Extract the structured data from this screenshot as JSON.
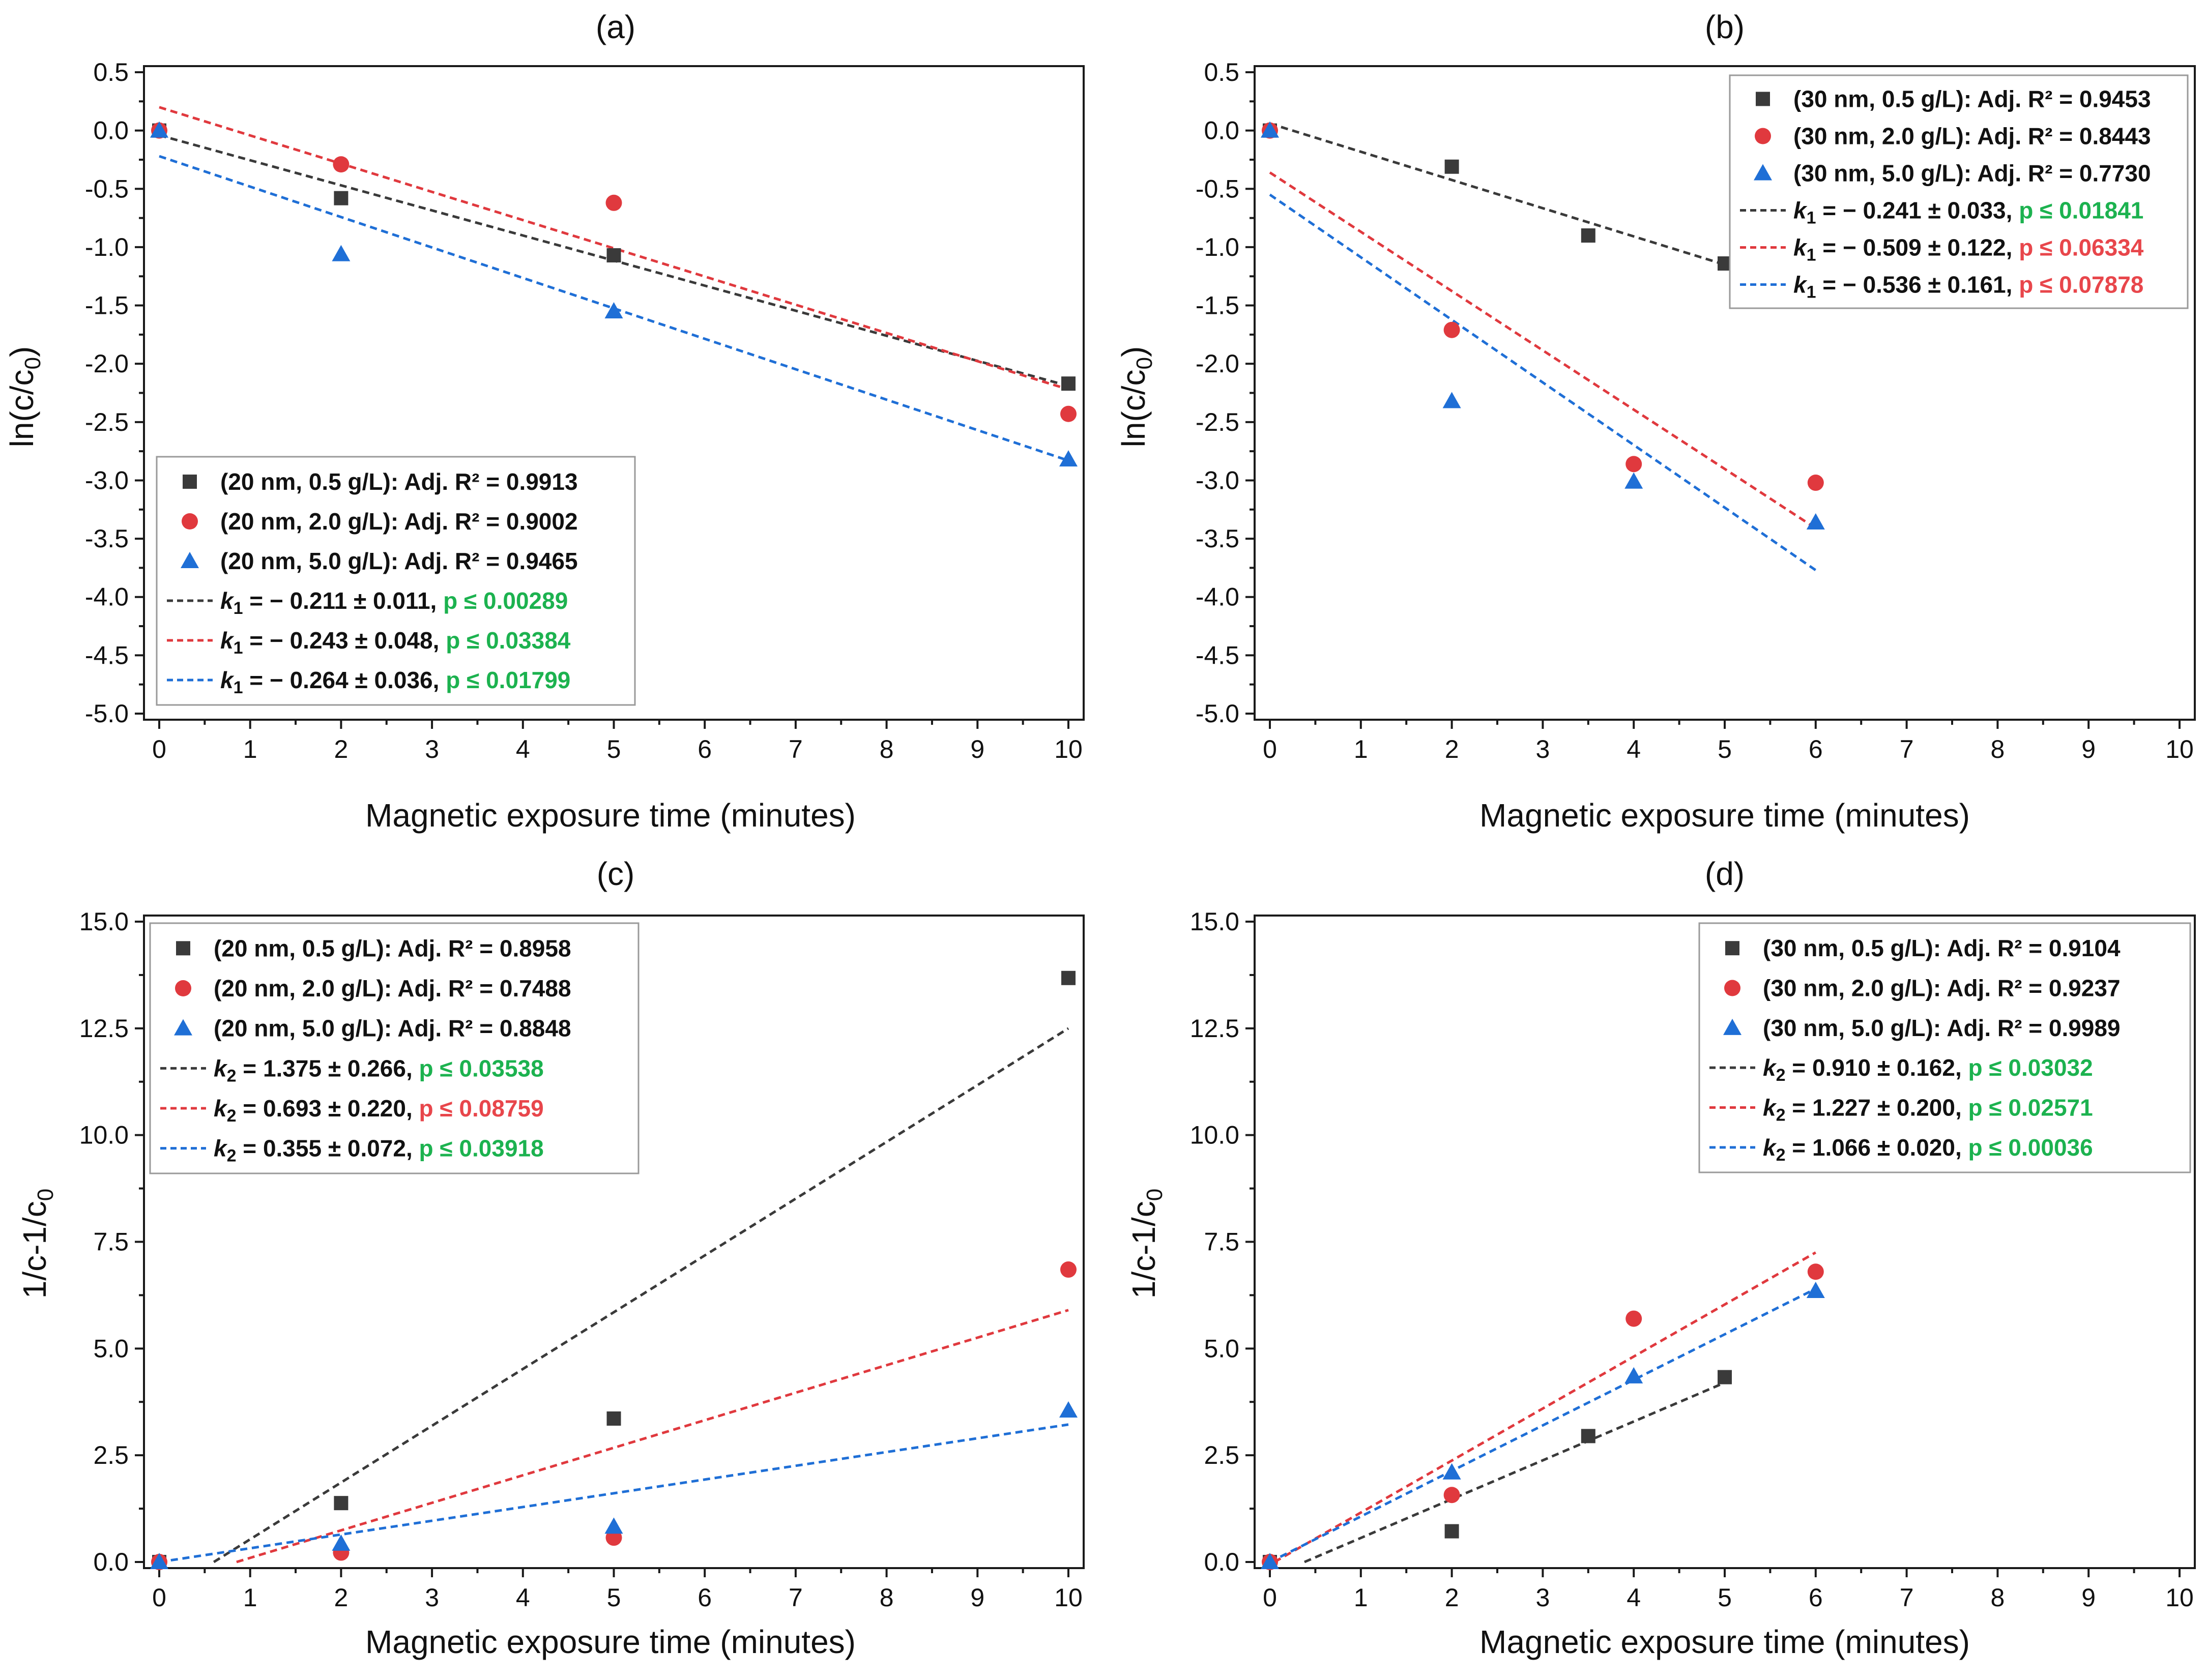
{
  "colors": {
    "black": "#3a3a3a",
    "red": "#e0393e",
    "blue": "#1f6fd6",
    "green": "#1cb24f",
    "pred": "#e8464b"
  },
  "chart_data": [
    {
      "id": "a",
      "title": "(a)",
      "type": "scatter",
      "xlabel": "Magnetic exposure time (minutes)",
      "ylabel": "ln(c/c0)",
      "ylabel_main": "ln(c/c",
      "ylabel_sub": "0",
      "ylabel_end": ")",
      "xlim": [
        0,
        10
      ],
      "ylim": [
        -5.0,
        0.5
      ],
      "xticks": [
        0,
        1,
        2,
        3,
        4,
        5,
        6,
        7,
        8,
        9,
        10
      ],
      "xtick_labels": [
        "0",
        "1",
        "2",
        "3",
        "4",
        "5",
        "6",
        "7",
        "8",
        "9",
        "10"
      ],
      "yticks": [
        0.5,
        0.0,
        -0.5,
        -1.0,
        -1.5,
        -2.0,
        -2.5,
        -3.0,
        -3.5,
        -4.0,
        -4.5,
        -5.0
      ],
      "ytick_labels": [
        "0.5",
        "0.0",
        "-0.5",
        "-1.0",
        "-1.5",
        "-2.0",
        "-2.5",
        "-3.0",
        "-3.5",
        "-4.0",
        "-4.5",
        "-5.0"
      ],
      "legend_position": "bottom-left",
      "series": [
        {
          "name": "(20 nm, 0.5 g/L): Adj. R² = 0.9913",
          "marker": "square",
          "color": "black",
          "x": [
            0,
            2,
            5,
            10
          ],
          "y": [
            0.0,
            -0.58,
            -1.07,
            -2.17
          ]
        },
        {
          "name": "(20 nm, 2.0 g/L): Adj. R² = 0.9002",
          "marker": "circle",
          "color": "red",
          "x": [
            0,
            2,
            5,
            10
          ],
          "y": [
            0.0,
            -0.29,
            -0.62,
            -2.43
          ]
        },
        {
          "name": "(20 nm, 5.0 g/L): Adj. R² = 0.9465",
          "marker": "triangle",
          "color": "blue",
          "x": [
            0,
            2,
            5,
            10
          ],
          "y": [
            0.0,
            -1.06,
            -1.55,
            -2.82
          ]
        }
      ],
      "fits": [
        {
          "color": "black",
          "x": [
            0,
            10
          ],
          "y": [
            -0.04,
            -2.19
          ],
          "k_symbol": "k",
          "k_sub": "1",
          "k_text": " = − 0.211 ± 0.011, ",
          "p_text": "p ≤ 0.00289",
          "p_color": "green"
        },
        {
          "color": "red",
          "x": [
            0,
            10
          ],
          "y": [
            0.2,
            -2.22
          ],
          "k_symbol": "k",
          "k_sub": "1",
          "k_text": " = − 0.243 ± 0.048, ",
          "p_text": "p ≤ 0.03384",
          "p_color": "green"
        },
        {
          "color": "blue",
          "x": [
            0,
            10
          ],
          "y": [
            -0.22,
            -2.83
          ],
          "k_symbol": "k",
          "k_sub": "1",
          "k_text": " = − 0.264 ± 0.036, ",
          "p_text": "p ≤ 0.01799",
          "p_color": "green"
        }
      ]
    },
    {
      "id": "b",
      "title": "(b)",
      "type": "scatter",
      "xlabel": "Magnetic exposure time (minutes)",
      "ylabel": "ln(c/c0)",
      "ylabel_main": "ln(c/c",
      "ylabel_sub": "0",
      "ylabel_end": ")",
      "xlim": [
        0,
        10
      ],
      "ylim": [
        -5.0,
        0.5
      ],
      "xticks": [
        0,
        1,
        2,
        3,
        4,
        5,
        6,
        7,
        8,
        9,
        10
      ],
      "xtick_labels": [
        "0",
        "1",
        "2",
        "3",
        "4",
        "5",
        "6",
        "7",
        "8",
        "9",
        "10"
      ],
      "yticks": [
        0.5,
        0.0,
        -0.5,
        -1.0,
        -1.5,
        -2.0,
        -2.5,
        -3.0,
        -3.5,
        -4.0,
        -4.5,
        -5.0
      ],
      "ytick_labels": [
        "0.5",
        "0.0",
        "-0.5",
        "-1.0",
        "-1.5",
        "-2.0",
        "-2.5",
        "-3.0",
        "-3.5",
        "-4.0",
        "-4.5",
        "-5.0"
      ],
      "legend_position": "top-right",
      "series": [
        {
          "name": "(30 nm, 0.5 g/L): Adj. R² = 0.9453",
          "marker": "square",
          "color": "black",
          "x": [
            0,
            2,
            3.5,
            5
          ],
          "y": [
            0.0,
            -0.31,
            -0.9,
            -1.14
          ]
        },
        {
          "name": "(30 nm, 2.0 g/L): Adj. R² = 0.8443",
          "marker": "circle",
          "color": "red",
          "x": [
            0,
            2,
            4,
            6
          ],
          "y": [
            0.0,
            -1.71,
            -2.86,
            -3.02
          ]
        },
        {
          "name": "(30 nm, 5.0 g/L): Adj. R² = 0.7730",
          "marker": "triangle",
          "color": "blue",
          "x": [
            0,
            2,
            4,
            6
          ],
          "y": [
            0.0,
            -2.32,
            -3.01,
            -3.36
          ]
        }
      ],
      "fits": [
        {
          "color": "black",
          "x": [
            0,
            5
          ],
          "y": [
            0.06,
            -1.15
          ],
          "k_symbol": "k",
          "k_sub": "1",
          "k_text": " = − 0.241 ± 0.033, ",
          "p_text": "p ≤ 0.01841",
          "p_color": "green"
        },
        {
          "color": "red",
          "x": [
            0,
            6
          ],
          "y": [
            -0.36,
            -3.41
          ],
          "k_symbol": "k",
          "k_sub": "1",
          "k_text": " = − 0.509 ± 0.122, ",
          "p_text": "p ≤ 0.06334",
          "p_color": "pred"
        },
        {
          "color": "blue",
          "x": [
            0,
            6
          ],
          "y": [
            -0.55,
            -3.77
          ],
          "k_symbol": "k",
          "k_sub": "1",
          "k_text": " = − 0.536 ± 0.161, ",
          "p_text": "p ≤ 0.07878",
          "p_color": "pred"
        }
      ]
    },
    {
      "id": "c",
      "title": "(c)",
      "type": "scatter",
      "xlabel": "Magnetic exposure time (minutes)",
      "ylabel": "1/c-1/c0",
      "ylabel_main": "1/c-1/c",
      "ylabel_sub": "0",
      "ylabel_end": "",
      "xlim": [
        0,
        10
      ],
      "ylim": [
        0,
        15
      ],
      "xticks": [
        0,
        1,
        2,
        3,
        4,
        5,
        6,
        7,
        8,
        9,
        10
      ],
      "xtick_labels": [
        "0",
        "1",
        "2",
        "3",
        "4",
        "5",
        "6",
        "7",
        "8",
        "9",
        "10"
      ],
      "yticks": [
        0,
        2.5,
        5,
        7.5,
        10,
        12.5,
        15
      ],
      "ytick_labels": [
        "0.0",
        "2.5",
        "5.0",
        "7.5",
        "10.0",
        "12.5",
        "15.0"
      ],
      "legend_position": "top-left",
      "series": [
        {
          "name": "(20 nm, 0.5 g/L): Adj. R² = 0.8958",
          "marker": "square",
          "color": "black",
          "x": [
            0,
            2,
            5,
            10
          ],
          "y": [
            0.0,
            1.38,
            3.36,
            13.68
          ]
        },
        {
          "name": "(20 nm, 2.0 g/L): Adj. R² = 0.7488",
          "marker": "circle",
          "color": "red",
          "x": [
            0,
            2,
            5,
            10
          ],
          "y": [
            0.0,
            0.22,
            0.57,
            6.85
          ]
        },
        {
          "name": "(20 nm, 5.0 g/L): Adj. R² = 0.8848",
          "marker": "triangle",
          "color": "blue",
          "x": [
            0,
            2,
            5,
            10
          ],
          "y": [
            0.0,
            0.43,
            0.83,
            3.55
          ]
        }
      ],
      "fits": [
        {
          "color": "black",
          "x": [
            0.6,
            10
          ],
          "y": [
            0.0,
            12.5
          ],
          "k_symbol": "k",
          "k_sub": "2",
          "k_text": " = 1.375 ± 0.266, ",
          "p_text": "p ≤ 0.03538",
          "p_color": "green"
        },
        {
          "color": "red",
          "x": [
            0.85,
            10
          ],
          "y": [
            0.0,
            5.9
          ],
          "k_symbol": "k",
          "k_sub": "2",
          "k_text": " = 0.693 ± 0.220, ",
          "p_text": "p ≤ 0.08759",
          "p_color": "pred"
        },
        {
          "color": "blue",
          "x": [
            0,
            10
          ],
          "y": [
            0.0,
            3.22
          ],
          "k_symbol": "k",
          "k_sub": "2",
          "k_text": " = 0.355 ± 0.072, ",
          "p_text": "p ≤ 0.03918",
          "p_color": "green"
        }
      ]
    },
    {
      "id": "d",
      "title": "(d)",
      "type": "scatter",
      "xlabel": "Magnetic exposure time (minutes)",
      "ylabel": "1/c-1/c0",
      "ylabel_main": "1/c-1/c",
      "ylabel_sub": "0",
      "ylabel_end": "",
      "xlim": [
        0,
        10
      ],
      "ylim": [
        0,
        15
      ],
      "xticks": [
        0,
        1,
        2,
        3,
        4,
        5,
        6,
        7,
        8,
        9,
        10
      ],
      "xtick_labels": [
        "0",
        "1",
        "2",
        "3",
        "4",
        "5",
        "6",
        "7",
        "8",
        "9",
        "10"
      ],
      "yticks": [
        0,
        2.5,
        5,
        7.5,
        10,
        12.5,
        15
      ],
      "ytick_labels": [
        "0.0",
        "2.5",
        "5.0",
        "7.5",
        "10.0",
        "12.5",
        "15.0"
      ],
      "legend_position": "top-right",
      "series": [
        {
          "name": "(30 nm, 0.5 g/L): Adj. R² = 0.9104",
          "marker": "square",
          "color": "black",
          "x": [
            0,
            2,
            3.5,
            5
          ],
          "y": [
            0.0,
            0.72,
            2.95,
            4.33
          ]
        },
        {
          "name": "(30 nm, 2.0 g/L): Adj. R² = 0.9237",
          "marker": "circle",
          "color": "red",
          "x": [
            0,
            2,
            4,
            6
          ],
          "y": [
            0.0,
            1.57,
            5.7,
            6.8
          ]
        },
        {
          "name": "(30 nm, 5.0 g/L): Adj. R² = 0.9989",
          "marker": "triangle",
          "color": "blue",
          "x": [
            0,
            2,
            4,
            6
          ],
          "y": [
            0.0,
            2.1,
            4.35,
            6.35
          ]
        }
      ],
      "fits": [
        {
          "color": "black",
          "x": [
            0.38,
            5
          ],
          "y": [
            0.0,
            4.2
          ],
          "k_symbol": "k",
          "k_sub": "2",
          "k_text": " = 0.910 ± 0.162, ",
          "p_text": "p ≤ 0.03032",
          "p_color": "green"
        },
        {
          "color": "red",
          "x": [
            0.05,
            6
          ],
          "y": [
            0.0,
            7.25
          ],
          "k_symbol": "k",
          "k_sub": "2",
          "k_text": " = 1.227 ± 0.200, ",
          "p_text": "p ≤ 0.02571",
          "p_color": "green"
        },
        {
          "color": "blue",
          "x": [
            0,
            6
          ],
          "y": [
            0.0,
            6.4
          ],
          "k_symbol": "k",
          "k_sub": "2",
          "k_text": " = 1.066 ± 0.020, ",
          "p_text": "p ≤ 0.00036",
          "p_color": "green"
        }
      ]
    }
  ]
}
